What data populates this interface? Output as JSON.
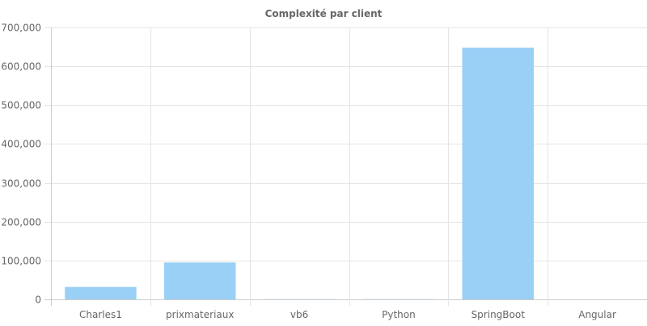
{
  "chart_data": {
    "type": "bar",
    "title": "Complexité par client",
    "categories": [
      "Charles1",
      "prixmateriaux",
      "vb6",
      "Python",
      "SpringBoot",
      "Angular"
    ],
    "series": [
      {
        "values": [
          32000,
          95000,
          600,
          600,
          648000,
          0
        ]
      }
    ],
    "y_tick_labels": [
      "0",
      "100,000",
      "200,000",
      "300,000",
      "400,000",
      "500,000",
      "600,000",
      "700,000"
    ],
    "ylim": [
      0,
      700000
    ],
    "xlabel": "",
    "ylabel": "",
    "grid": true,
    "legend": "none",
    "colors": {
      "bar_fill": "#9ad0f5",
      "bar_stroke": "#36a2eb",
      "text": "#666666",
      "grid": "#e5e5e5"
    }
  }
}
